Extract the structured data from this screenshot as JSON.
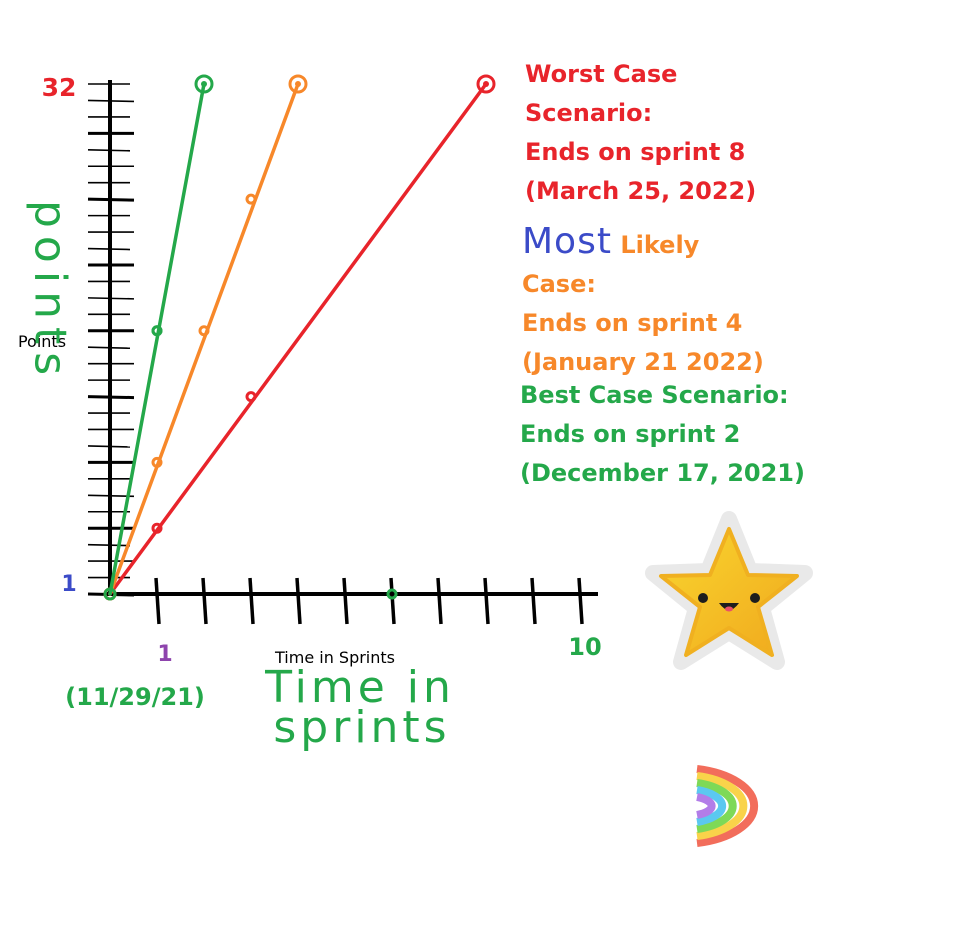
{
  "chart_data": {
    "type": "line",
    "title": "",
    "xlabel": "Time in Sprints",
    "ylabel": "Points",
    "xlabel_handwritten": "Time in sprints",
    "ylabel_handwritten": "points",
    "x_start_label": "1",
    "x_start_date": "(11/29/21)",
    "x_end_label": "10",
    "y_min_label": "1",
    "y_max_label": "32",
    "xlim": [
      0,
      10
    ],
    "ylim": [
      0,
      31
    ],
    "series": [
      {
        "name": "Worst Case Scenario",
        "color": "#e8242b",
        "x": [
          0,
          1,
          3,
          8
        ],
        "y": [
          0,
          4,
          12,
          31
        ]
      },
      {
        "name": "Most Likely Case",
        "color": "#f7882a",
        "x": [
          0,
          1,
          2,
          4
        ],
        "y": [
          0,
          8,
          16,
          31
        ]
      },
      {
        "name": "Best Case Scenario",
        "color": "#24a84a",
        "x": [
          0,
          1,
          2
        ],
        "y": [
          0,
          16,
          31
        ]
      }
    ],
    "scatter_marks": [
      {
        "color": "#f7882a",
        "x": 3,
        "y": 24
      },
      {
        "color": "#24a84a",
        "x": 1,
        "y": 16
      },
      {
        "color": "#24a84a",
        "x": 6,
        "y": 0
      }
    ],
    "grid": false,
    "legend": "right"
  },
  "annotations": {
    "worst": {
      "color": "#e8242b",
      "lines": [
        "Worst Case",
        "Scenario:",
        "Ends on sprint 8",
        "(March 25, 2022)"
      ]
    },
    "most_likely": {
      "color": "#f7882a",
      "handwritten_prefix": "Most",
      "handwritten_color": "#3b4bc8",
      "lines": [
        "Likely",
        "Case:",
        "Ends on sprint 4",
        "(January 21 2022)"
      ]
    },
    "best": {
      "color": "#24a84a",
      "lines": [
        "Best Case Scenario:",
        "Ends on sprint 2",
        "(December 17, 2021)"
      ]
    }
  },
  "stickers": {
    "star": "smiling-star-icon",
    "rainbow": "rainbow-icon"
  },
  "colors": {
    "axis": "#000000",
    "y_max_label": "#e8242b",
    "y_min_label": "#3b4bc8",
    "x_start_label": "#8e44ad",
    "x_end_label": "#24a84a",
    "date_label": "#24a84a",
    "handwriting_green": "#24a84a"
  }
}
